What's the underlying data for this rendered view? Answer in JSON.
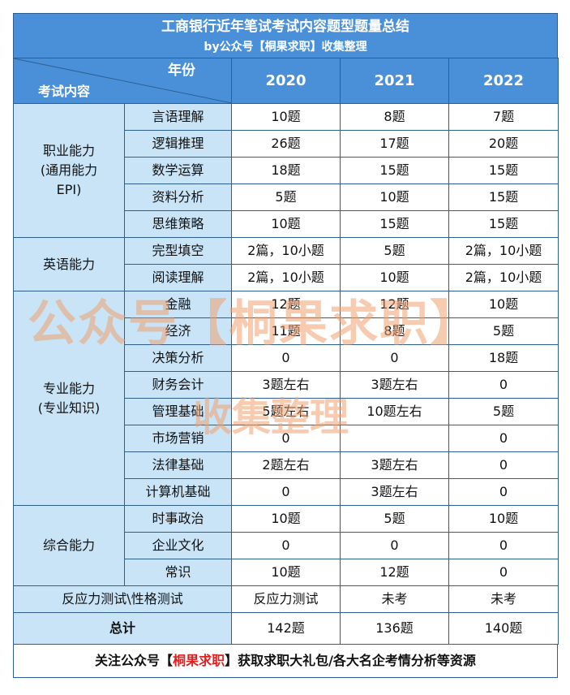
{
  "title": "工商银行近年笔试考试内容题型题量总结",
  "subtitle": "by公众号【桐果求职】收集整理",
  "header": {
    "year_label": "年份",
    "content_label": "考试内容",
    "years": [
      "2020",
      "2021",
      "2022"
    ]
  },
  "groups": [
    {
      "category": "职业能力(通用能力EPI)",
      "category_lines": [
        "职业能力",
        "(通用能力",
        "EPI)"
      ],
      "rows": [
        {
          "name": "言语理解",
          "values": [
            "10题",
            "8题",
            "7题"
          ]
        },
        {
          "name": "逻辑推理",
          "values": [
            "26题",
            "17题",
            "20题"
          ]
        },
        {
          "name": "数学运算",
          "values": [
            "18题",
            "15题",
            "15题"
          ]
        },
        {
          "name": "资料分析",
          "values": [
            "5题",
            "10题",
            "15题"
          ]
        },
        {
          "name": "思维策略",
          "values": [
            "10题",
            "15题",
            "15题"
          ]
        }
      ]
    },
    {
      "category": "英语能力",
      "category_lines": [
        "英语能力"
      ],
      "rows": [
        {
          "name": "完型填空",
          "values": [
            "2篇，10小题",
            "5题",
            "2篇，10小题"
          ]
        },
        {
          "name": "阅读理解",
          "values": [
            "2篇，10小题",
            "10题",
            "2篇，10小题"
          ]
        }
      ]
    },
    {
      "category": "专业能力(专业知识)",
      "category_lines": [
        "专业能力",
        "(专业知识)"
      ],
      "rows": [
        {
          "name": "金融",
          "values": [
            "12题",
            "12题",
            "10题"
          ]
        },
        {
          "name": "经济",
          "values": [
            "11题",
            "8题",
            "5题"
          ]
        },
        {
          "name": "决策分析",
          "values": [
            "0",
            "0",
            "18题"
          ]
        },
        {
          "name": "财务会计",
          "values": [
            "3题左右",
            "3题左右",
            "0"
          ]
        },
        {
          "name": "管理基础",
          "values": [
            "5题左右",
            "10题左右",
            "5题"
          ]
        },
        {
          "name": "市场营销",
          "values": [
            "0",
            "",
            "0"
          ]
        },
        {
          "name": "法律基础",
          "values": [
            "2题左右",
            "3题左右",
            "0"
          ]
        },
        {
          "name": "计算机基础",
          "values": [
            "0",
            "3题左右",
            "0"
          ]
        }
      ]
    },
    {
      "category": "综合能力",
      "category_lines": [
        "综合能力"
      ],
      "rows": [
        {
          "name": "时事政治",
          "values": [
            "10题",
            "5题",
            "10题"
          ]
        },
        {
          "name": "企业文化",
          "values": [
            "0",
            "0",
            "0"
          ]
        },
        {
          "name": "常识",
          "values": [
            "10题",
            "12题",
            "0"
          ]
        }
      ]
    }
  ],
  "special_row": {
    "name": "反应力测试\\性格测试",
    "values": [
      "反应力测试",
      "未考",
      "未考"
    ]
  },
  "total_row": {
    "name": "总计",
    "values": [
      "142题",
      "136题",
      "140题"
    ]
  },
  "footer": {
    "prefix": "关注公众号【",
    "highlight": "桐果求职",
    "suffix": "】获取求职大礼包/各大名企考情分析等资源"
  },
  "watermark": {
    "line1": "公众号【桐果求职】",
    "line2": "收集整理"
  },
  "colors": {
    "header_bg": "#4A90D9",
    "label_bg": "#C9E4F7",
    "border": "#2F5F8F",
    "highlight": "#E02020",
    "watermark": "#EEA06E"
  }
}
